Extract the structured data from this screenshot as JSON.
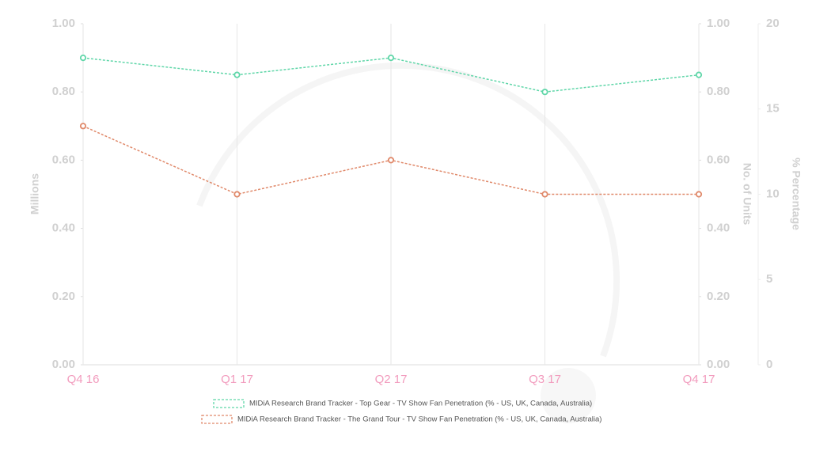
{
  "chart_data": {
    "type": "line",
    "categories": [
      "Q4 16",
      "Q1 17",
      "Q2 17",
      "Q3 17",
      "Q4 17"
    ],
    "series": [
      {
        "name": "MIDiA Research Brand Tracker - Top Gear - TV Show Fan Penetration (% - US, UK, Canada, Australia)",
        "color": "#5fd6a8",
        "values": [
          0.9,
          0.85,
          0.9,
          0.8,
          0.85
        ]
      },
      {
        "name": "MIDiA Research Brand Tracker - The Grand Tour - TV Show Fan Penetration (% - US, UK, Canada, Australia)",
        "color": "#e0896a",
        "values": [
          0.7,
          0.5,
          0.6,
          0.5,
          0.5
        ]
      }
    ],
    "ylabel": "Millions",
    "ylim": [
      0,
      1
    ],
    "yticks": [
      {
        "value": 0,
        "label": "0.00"
      },
      {
        "value": 0.2,
        "label": "0.20"
      },
      {
        "value": 0.4,
        "label": "0.40"
      },
      {
        "value": 0.6,
        "label": "0.60"
      },
      {
        "value": 0.8,
        "label": "0.80"
      },
      {
        "value": 1,
        "label": "1.00"
      }
    ],
    "y2label": "No. of Units",
    "y2lim": [
      0,
      1
    ],
    "y2ticks": [
      {
        "value": 0,
        "label": "0.00"
      },
      {
        "value": 0.2,
        "label": "0.20"
      },
      {
        "value": 0.4,
        "label": "0.40"
      },
      {
        "value": 0.6,
        "label": "0.60"
      },
      {
        "value": 0.8,
        "label": "0.80"
      },
      {
        "value": 1,
        "label": "1.00"
      }
    ],
    "y3label": "% Percentage",
    "y3lim": [
      0,
      20
    ],
    "y3ticks": [
      0,
      5,
      10,
      15,
      20
    ],
    "grid": "x",
    "dashed": true
  }
}
